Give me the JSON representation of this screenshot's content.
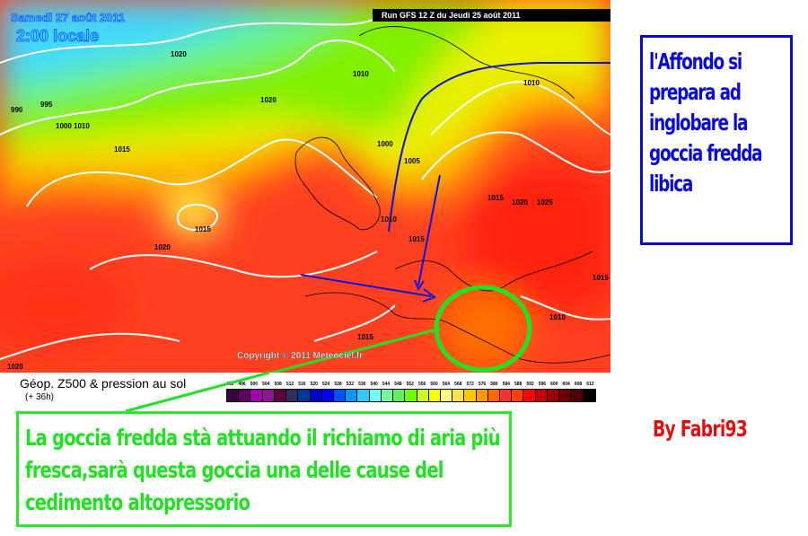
{
  "map": {
    "date_line": "Samedi 27 août 2011",
    "time_line": "2:00 locale",
    "run_banner": "Run GFS 12 Z du Jeudi 25 août 2011",
    "copyright": "Copyright © 2011 Meteociel.fr",
    "isobar_labels": [
      "1020",
      "1010",
      "1020",
      "995",
      "990",
      "1000",
      "1010",
      "1015",
      "1000",
      "1005",
      "1010",
      "1015",
      "1020",
      "1025",
      "1015",
      "1010",
      "1015",
      "1020",
      "1015",
      "1010",
      "1015",
      "1020"
    ]
  },
  "legend": {
    "title": "Géop. Z500 & pression au sol",
    "subtitle": "(+ 36h)",
    "scale_values": [
      "492",
      "496",
      "500",
      "504",
      "508",
      "512",
      "516",
      "520",
      "524",
      "528",
      "532",
      "536",
      "540",
      "544",
      "548",
      "552",
      "556",
      "560",
      "564",
      "568",
      "572",
      "576",
      "580",
      "584",
      "588",
      "592",
      "596",
      "600",
      "604",
      "608",
      "612"
    ],
    "scale_colors": [
      "#3a0040",
      "#5a0060",
      "#a000a8",
      "#8a1a8a",
      "#600040",
      "#303060",
      "#003898",
      "#0000c8",
      "#0000ff",
      "#0050ff",
      "#0098ff",
      "#30c8ff",
      "#70ffff",
      "#70ff98",
      "#60f060",
      "#70ff00",
      "#c8ff20",
      "#ffff00",
      "#ffff80",
      "#ffe050",
      "#ffc800",
      "#ff9800",
      "#ff6800",
      "#ff3030",
      "#ff4000",
      "#ff0000",
      "#c80000",
      "#980000",
      "#700000",
      "#500000",
      "#000000"
    ]
  },
  "annotations": {
    "blue_box_lines": [
      "l'Affondo si",
      "prepara ad",
      "inglobare la",
      "goccia fredda",
      "libica"
    ],
    "green_box_lines": [
      "La goccia fredda stà attuando il richiamo di aria più",
      "fresca,sarà questa goccia una delle cause del",
      "cedimento altopressorio"
    ],
    "byline": "By Fabri93",
    "colors": {
      "blue": "#0a0ad8",
      "green": "#2ce82c",
      "red": "#e01010"
    }
  }
}
